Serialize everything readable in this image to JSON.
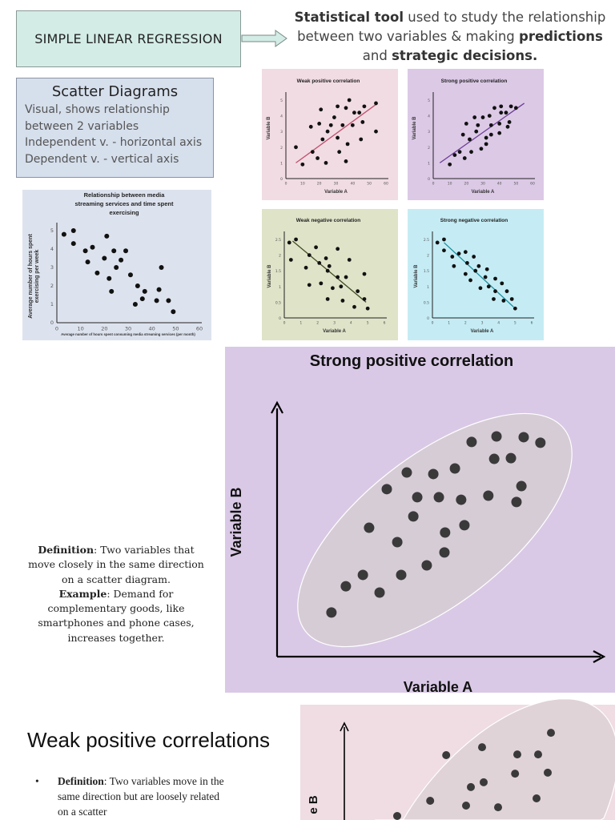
{
  "header": {
    "title": "SIMPLE LINEAR REGRESSION",
    "intro_bold1": "Statistical tool",
    "intro_text1": " used to study the relationship between two variables & making ",
    "intro_bold2": "predictions",
    "intro_text2": " and ",
    "intro_bold3": "strategic decisions."
  },
  "scatter_info": {
    "heading": "Scatter Diagrams",
    "lines": [
      "Visual, shows relationship",
      "between 2 variables",
      "Independent v. - horizontal axis",
      "Dependent v. - vertical axis"
    ]
  },
  "strong_positive_section": {
    "definition_label": "Definition",
    "definition_text": ": Two variables that move closely in the same direction on a scatter diagram.",
    "example_label": "Example",
    "example_text": ": Demand for complementary goods, like smartphones and phone cases, increases together."
  },
  "weak_positive_section": {
    "title": "Weak positive correlations",
    "bullet": "•",
    "definition_label": "Definition",
    "definition_text": ": Two variables move in the same direction but are loosely related on a scatter"
  },
  "chart_data": [
    {
      "id": "media",
      "type": "scatter",
      "title": [
        "Relationship between media",
        "streaming services and time spent",
        "exercising"
      ],
      "xlabel": "Average number of hours spent consuming media streaming services (per month)",
      "ylabel": [
        "Average number of hours spent",
        "exercising per week"
      ],
      "xlim": [
        0,
        60
      ],
      "ylim": [
        0,
        5
      ],
      "xticks": [
        "0",
        "10",
        "20",
        "30",
        "40",
        "50",
        "60"
      ],
      "yticks": [
        "0",
        "1",
        "2",
        "3",
        "4",
        "5"
      ],
      "background": "#dde3ee",
      "points": [
        [
          3,
          4.8
        ],
        [
          7,
          5
        ],
        [
          7,
          4.3
        ],
        [
          12,
          3.9
        ],
        [
          13,
          3.3
        ],
        [
          15,
          4.1
        ],
        [
          17,
          2.7
        ],
        [
          20,
          3.5
        ],
        [
          21,
          4.7
        ],
        [
          22,
          2.4
        ],
        [
          23,
          1.7
        ],
        [
          24,
          3.9
        ],
        [
          25,
          3
        ],
        [
          27,
          3.4
        ],
        [
          29,
          3.9
        ],
        [
          31,
          2.6
        ],
        [
          33,
          1
        ],
        [
          34,
          2
        ],
        [
          36,
          1.3
        ],
        [
          37,
          1.7
        ],
        [
          42,
          1.2
        ],
        [
          43,
          1.8
        ],
        [
          44,
          3
        ],
        [
          47,
          1.2
        ],
        [
          49,
          0.6
        ]
      ]
    },
    {
      "id": "weak-pos",
      "type": "scatter",
      "title": [
        "Weak positive correlation"
      ],
      "xlabel": "Variable A",
      "ylabel": [
        "Variable B"
      ],
      "xlim": [
        0,
        60
      ],
      "ylim": [
        0,
        5
      ],
      "xticks": [
        "0",
        "10",
        "20",
        "30",
        "40",
        "50",
        "60"
      ],
      "yticks": [
        "0",
        "1",
        "2",
        "3",
        "4",
        "5"
      ],
      "background": "#f1dce3",
      "line_color": "#c0506e",
      "trend": [
        [
          6,
          1
        ],
        [
          55,
          4.8
        ]
      ],
      "points": [
        [
          6,
          2
        ],
        [
          10,
          0.9
        ],
        [
          15,
          3.3
        ],
        [
          16,
          1.7
        ],
        [
          19,
          1.3
        ],
        [
          20,
          3.5
        ],
        [
          21,
          4.4
        ],
        [
          22,
          2.5
        ],
        [
          24,
          1
        ],
        [
          25,
          3
        ],
        [
          27,
          3.4
        ],
        [
          29,
          3.9
        ],
        [
          31,
          4.6
        ],
        [
          31,
          2.6
        ],
        [
          32,
          1.7
        ],
        [
          34,
          3.4
        ],
        [
          36,
          4.5
        ],
        [
          36,
          1.1
        ],
        [
          37,
          2.2
        ],
        [
          38,
          5
        ],
        [
          40,
          3.4
        ],
        [
          41,
          4.2
        ],
        [
          44,
          4.2
        ],
        [
          45,
          2.5
        ],
        [
          47,
          4.6
        ],
        [
          46,
          3.6
        ],
        [
          54,
          4.8
        ],
        [
          54,
          3
        ]
      ]
    },
    {
      "id": "strong-pos",
      "type": "scatter",
      "title": [
        "Strong positive correlation"
      ],
      "xlabel": "Variable A",
      "ylabel": [
        "Variable B"
      ],
      "xlim": [
        0,
        60
      ],
      "ylim": [
        0,
        5
      ],
      "xticks": [
        "0",
        "10",
        "20",
        "30",
        "40",
        "50",
        "60"
      ],
      "yticks": [
        "0",
        "1",
        "2",
        "3",
        "4",
        "5"
      ],
      "background": "#dcc9e6",
      "line_color": "#6a3d94",
      "trend": [
        [
          4,
          1
        ],
        [
          55,
          4.8
        ]
      ],
      "points": [
        [
          10,
          0.9
        ],
        [
          13,
          1.5
        ],
        [
          16,
          1.7
        ],
        [
          18,
          2.8
        ],
        [
          19,
          1.3
        ],
        [
          20,
          3.5
        ],
        [
          23,
          1.7
        ],
        [
          22,
          2.5
        ],
        [
          25,
          3.9
        ],
        [
          26,
          3
        ],
        [
          27,
          3.4
        ],
        [
          29,
          1.9
        ],
        [
          30,
          3.9
        ],
        [
          32,
          2.2
        ],
        [
          32,
          2.6
        ],
        [
          34,
          4
        ],
        [
          35,
          3.4
        ],
        [
          35,
          2.8
        ],
        [
          37,
          4.5
        ],
        [
          40,
          2.9
        ],
        [
          40,
          3.5
        ],
        [
          41,
          4.2
        ],
        [
          41,
          4.6
        ],
        [
          44,
          4.2
        ],
        [
          45,
          3.3
        ],
        [
          46,
          3.6
        ],
        [
          47,
          4.6
        ],
        [
          50,
          4.5
        ]
      ]
    },
    {
      "id": "weak-neg",
      "type": "scatter",
      "title": [
        "Weak negative correlation"
      ],
      "xlabel": "Variable A",
      "ylabel": [
        "Variable B"
      ],
      "xlim": [
        0,
        6
      ],
      "ylim": [
        0,
        2.5
      ],
      "xticks": [
        "0",
        "1",
        "2",
        "3",
        "4",
        "5",
        "6"
      ],
      "yticks": [
        "0",
        "0.5",
        "1",
        "1.5",
        "2",
        "2.5"
      ],
      "background": "#dfe3c8",
      "line_color": "#3e4a22",
      "trend": [
        [
          0.5,
          2.45
        ],
        [
          4.9,
          0.5
        ]
      ],
      "points": [
        [
          0.3,
          2.4
        ],
        [
          0.4,
          1.85
        ],
        [
          0.7,
          2.5
        ],
        [
          1.3,
          1.6
        ],
        [
          1.5,
          2
        ],
        [
          1.5,
          1.05
        ],
        [
          1.9,
          2.25
        ],
        [
          2.1,
          1.75
        ],
        [
          2.2,
          1.1
        ],
        [
          2.5,
          1.9
        ],
        [
          2.6,
          1.5
        ],
        [
          2.6,
          0.6
        ],
        [
          2.7,
          1.65
        ],
        [
          2.9,
          0.95
        ],
        [
          3.2,
          2.2
        ],
        [
          3.2,
          1.3
        ],
        [
          3.4,
          1
        ],
        [
          3.5,
          0.55
        ],
        [
          3.7,
          1.3
        ],
        [
          3.9,
          1.85
        ],
        [
          4.2,
          0.35
        ],
        [
          4.4,
          0.85
        ],
        [
          4.8,
          1.4
        ],
        [
          4.8,
          0.6
        ],
        [
          5,
          0.3
        ]
      ]
    },
    {
      "id": "strong-neg",
      "type": "scatter",
      "title": [
        "Strong negative correlation"
      ],
      "xlabel": "Variable A",
      "ylabel": [
        "Variable B"
      ],
      "xlim": [
        0,
        6
      ],
      "ylim": [
        0,
        2.5
      ],
      "xticks": [
        "0",
        "1",
        "2",
        "3",
        "4",
        "5",
        "6"
      ],
      "yticks": [
        "0",
        "0.5",
        "1",
        "1.5",
        "2",
        "2.5"
      ],
      "background": "#c5ecf4",
      "line_color": "#1a8c9c",
      "trend": [
        [
          0.7,
          2.4
        ],
        [
          4.9,
          0.35
        ]
      ],
      "points": [
        [
          0.3,
          2.4
        ],
        [
          0.7,
          2.5
        ],
        [
          0.7,
          2.15
        ],
        [
          1.2,
          1.95
        ],
        [
          1.3,
          1.65
        ],
        [
          1.6,
          2.05
        ],
        [
          2,
          2.1
        ],
        [
          2,
          1.4
        ],
        [
          2.1,
          1.75
        ],
        [
          2.3,
          1.2
        ],
        [
          2.5,
          1.95
        ],
        [
          2.6,
          1.5
        ],
        [
          2.8,
          1.65
        ],
        [
          2.9,
          0.95
        ],
        [
          3.2,
          1.3
        ],
        [
          3.3,
          1.55
        ],
        [
          3.4,
          1
        ],
        [
          3.7,
          0.6
        ],
        [
          3.8,
          1.25
        ],
        [
          3.8,
          0.85
        ],
        [
          4.2,
          1.1
        ],
        [
          4.3,
          0.55
        ],
        [
          4.5,
          0.85
        ],
        [
          4.8,
          0.6
        ],
        [
          5,
          0.3
        ]
      ]
    },
    {
      "id": "big-strong-pos",
      "type": "scatter",
      "title": [
        "Strong positive correlation"
      ],
      "xlabel": "Variable A",
      "ylabel": [
        "Variable B"
      ],
      "background": "#d9c9e6",
      "ellipse_color": "#d6ccd6",
      "points": [
        [
          1.66,
          1.75
        ],
        [
          2.1,
          2.79
        ],
        [
          2.62,
          3.24
        ],
        [
          3.13,
          2.54
        ],
        [
          2.81,
          5.11
        ],
        [
          3.35,
          6.64
        ],
        [
          3.67,
          4.54
        ],
        [
          3.79,
          3.24
        ],
        [
          3.96,
          7.3
        ],
        [
          4.16,
          5.56
        ],
        [
          4.28,
          6.32
        ],
        [
          4.57,
          3.62
        ],
        [
          4.77,
          7.24
        ],
        [
          4.94,
          6.32
        ],
        [
          5.11,
          4.13
        ],
        [
          5.13,
          4.92
        ],
        [
          5.43,
          7.46
        ],
        [
          5.62,
          6.22
        ],
        [
          5.72,
          5.21
        ],
        [
          5.94,
          8.51
        ],
        [
          6.45,
          6.38
        ],
        [
          6.63,
          7.84
        ],
        [
          6.7,
          8.73
        ],
        [
          7.14,
          7.87
        ],
        [
          7.31,
          6.13
        ],
        [
          7.46,
          6.76
        ],
        [
          7.53,
          8.7
        ],
        [
          8.04,
          8.48
        ]
      ]
    },
    {
      "id": "big-weak-pos",
      "type": "scatter",
      "ylabel": [
        "e B"
      ],
      "background": "#efdde3",
      "ellipse_color": "#e0d3d8",
      "points": [
        [
          3.18,
          6.9
        ],
        [
          4.3,
          7.23
        ],
        [
          5.4,
          6.93
        ],
        [
          6.05,
          6.93
        ],
        [
          6.45,
          7.83
        ],
        [
          5.33,
          6.13
        ],
        [
          6.35,
          6.17
        ],
        [
          4.35,
          5.77
        ],
        [
          3.95,
          5.57
        ],
        [
          2.68,
          5.0
        ],
        [
          3.8,
          4.8
        ],
        [
          4.8,
          4.73
        ],
        [
          6.0,
          5.1
        ],
        [
          1.65,
          4.2
        ]
      ]
    }
  ]
}
